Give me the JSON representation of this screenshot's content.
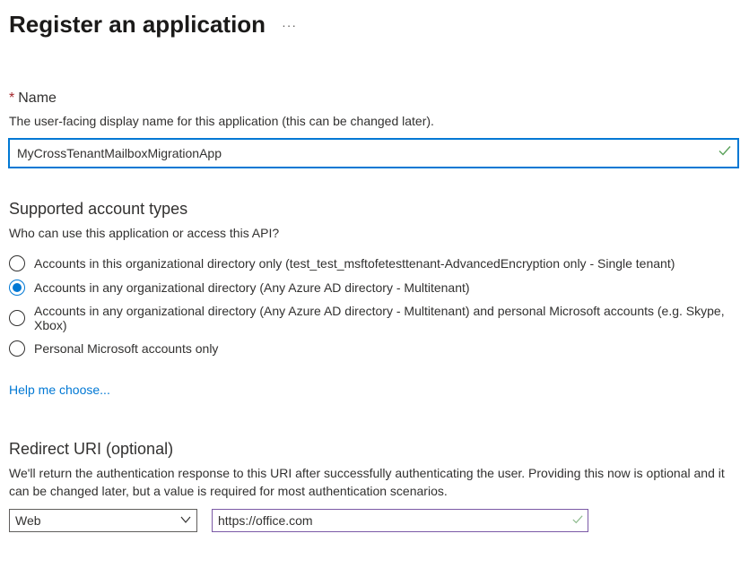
{
  "page": {
    "title": "Register an application"
  },
  "nameSection": {
    "label": "Name",
    "helper": "The user-facing display name for this application (this can be changed later).",
    "value": "MyCrossTenantMailboxMigrationApp"
  },
  "accountTypes": {
    "heading": "Supported account types",
    "helper": "Who can use this application or access this API?",
    "options": [
      {
        "label": "Accounts in this organizational directory only (test_test_msftofetesttenant-AdvancedEncryption only - Single tenant)",
        "selected": false
      },
      {
        "label": "Accounts in any organizational directory (Any Azure AD directory - Multitenant)",
        "selected": true
      },
      {
        "label": "Accounts in any organizational directory (Any Azure AD directory - Multitenant) and personal Microsoft accounts (e.g. Skype, Xbox)",
        "selected": false
      },
      {
        "label": "Personal Microsoft accounts only",
        "selected": false
      }
    ],
    "helpLink": "Help me choose..."
  },
  "redirect": {
    "heading": "Redirect URI (optional)",
    "helper": "We'll return the authentication response to this URI after successfully authenticating the user. Providing this now is optional and it can be changed later, but a value is required for most authentication scenarios.",
    "platformSelected": "Web",
    "uriValue": "https://office.com"
  },
  "colors": {
    "primary": "#0078d4",
    "text": "#323130",
    "requiredAsterisk": "#a4262c",
    "validGreen": "#5aa15a",
    "uriBorder": "#7b5aa6",
    "dropdownBorder": "#605e5c"
  }
}
